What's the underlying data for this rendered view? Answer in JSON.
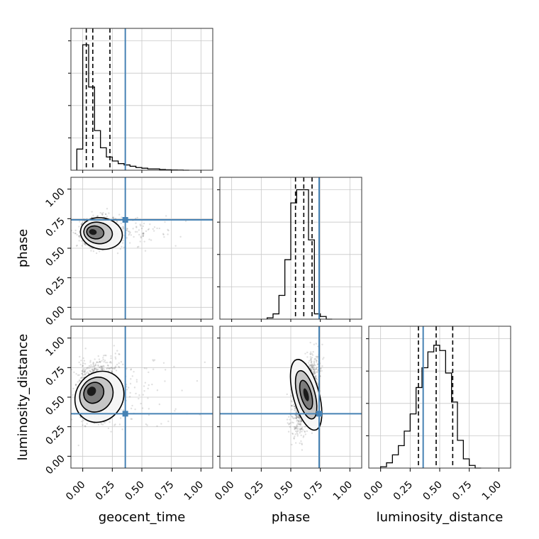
{
  "chart_data": {
    "type": "corner",
    "parameters": [
      "geocent_time",
      "phase",
      "luminosity_distance"
    ],
    "range": [
      -0.1,
      1.1
    ],
    "ticks": [
      0.0,
      0.25,
      0.5,
      0.75,
      1.0
    ],
    "tick_labels": [
      "0.00",
      "0.25",
      "0.50",
      "0.75",
      "1.00"
    ],
    "truths": [
      0.36,
      0.74,
      0.36
    ],
    "truth_color": "#4682b4",
    "grid": true,
    "histograms": [
      {
        "param": "geocent_time",
        "bin_edges": [
          -0.05,
          0.0,
          0.05,
          0.1,
          0.15,
          0.2,
          0.25,
          0.3,
          0.35,
          0.4,
          0.45,
          0.5,
          0.55,
          0.6,
          0.65,
          0.7,
          0.75,
          0.8,
          0.85,
          0.9
        ],
        "counts": [
          0.16,
          0.95,
          0.63,
          0.3,
          0.17,
          0.1,
          0.07,
          0.05,
          0.04,
          0.03,
          0.02,
          0.015,
          0.01,
          0.01,
          0.005,
          0.003,
          0.002,
          0.001,
          0.0
        ],
        "quantiles": [
          0.03,
          0.085,
          0.23
        ]
      },
      {
        "param": "phase",
        "bin_edges": [
          0.3,
          0.35,
          0.4,
          0.45,
          0.5,
          0.55,
          0.6,
          0.65,
          0.7,
          0.75,
          0.8,
          0.85
        ],
        "counts": [
          0.01,
          0.04,
          0.18,
          0.45,
          0.88,
          0.98,
          0.98,
          0.6,
          0.04,
          0.02,
          0.0
        ],
        "quantiles": [
          0.54,
          0.61,
          0.68
        ]
      },
      {
        "param": "luminosity_distance",
        "bin_edges": [
          0.0,
          0.05,
          0.1,
          0.15,
          0.2,
          0.25,
          0.3,
          0.35,
          0.4,
          0.45,
          0.5,
          0.55,
          0.6,
          0.65,
          0.7,
          0.75,
          0.8,
          0.85
        ],
        "counts": [
          0.01,
          0.04,
          0.1,
          0.17,
          0.28,
          0.41,
          0.61,
          0.76,
          0.88,
          0.93,
          0.89,
          0.72,
          0.5,
          0.21,
          0.07,
          0.02,
          0.0
        ],
        "quantiles": [
          0.32,
          0.47,
          0.61
        ]
      }
    ],
    "scatter_panels": [
      {
        "x_param": "geocent_time",
        "y_param": "phase",
        "peak": [
          0.07,
          0.64
        ],
        "spread": [
          0.09,
          0.06
        ]
      },
      {
        "x_param": "geocent_time",
        "y_param": "luminosity_distance",
        "peak": [
          0.06,
          0.56
        ],
        "spread": [
          0.1,
          0.12
        ]
      },
      {
        "x_param": "phase",
        "y_param": "luminosity_distance",
        "peak": [
          0.63,
          0.52
        ],
        "spread": [
          0.05,
          0.14
        ]
      }
    ]
  }
}
